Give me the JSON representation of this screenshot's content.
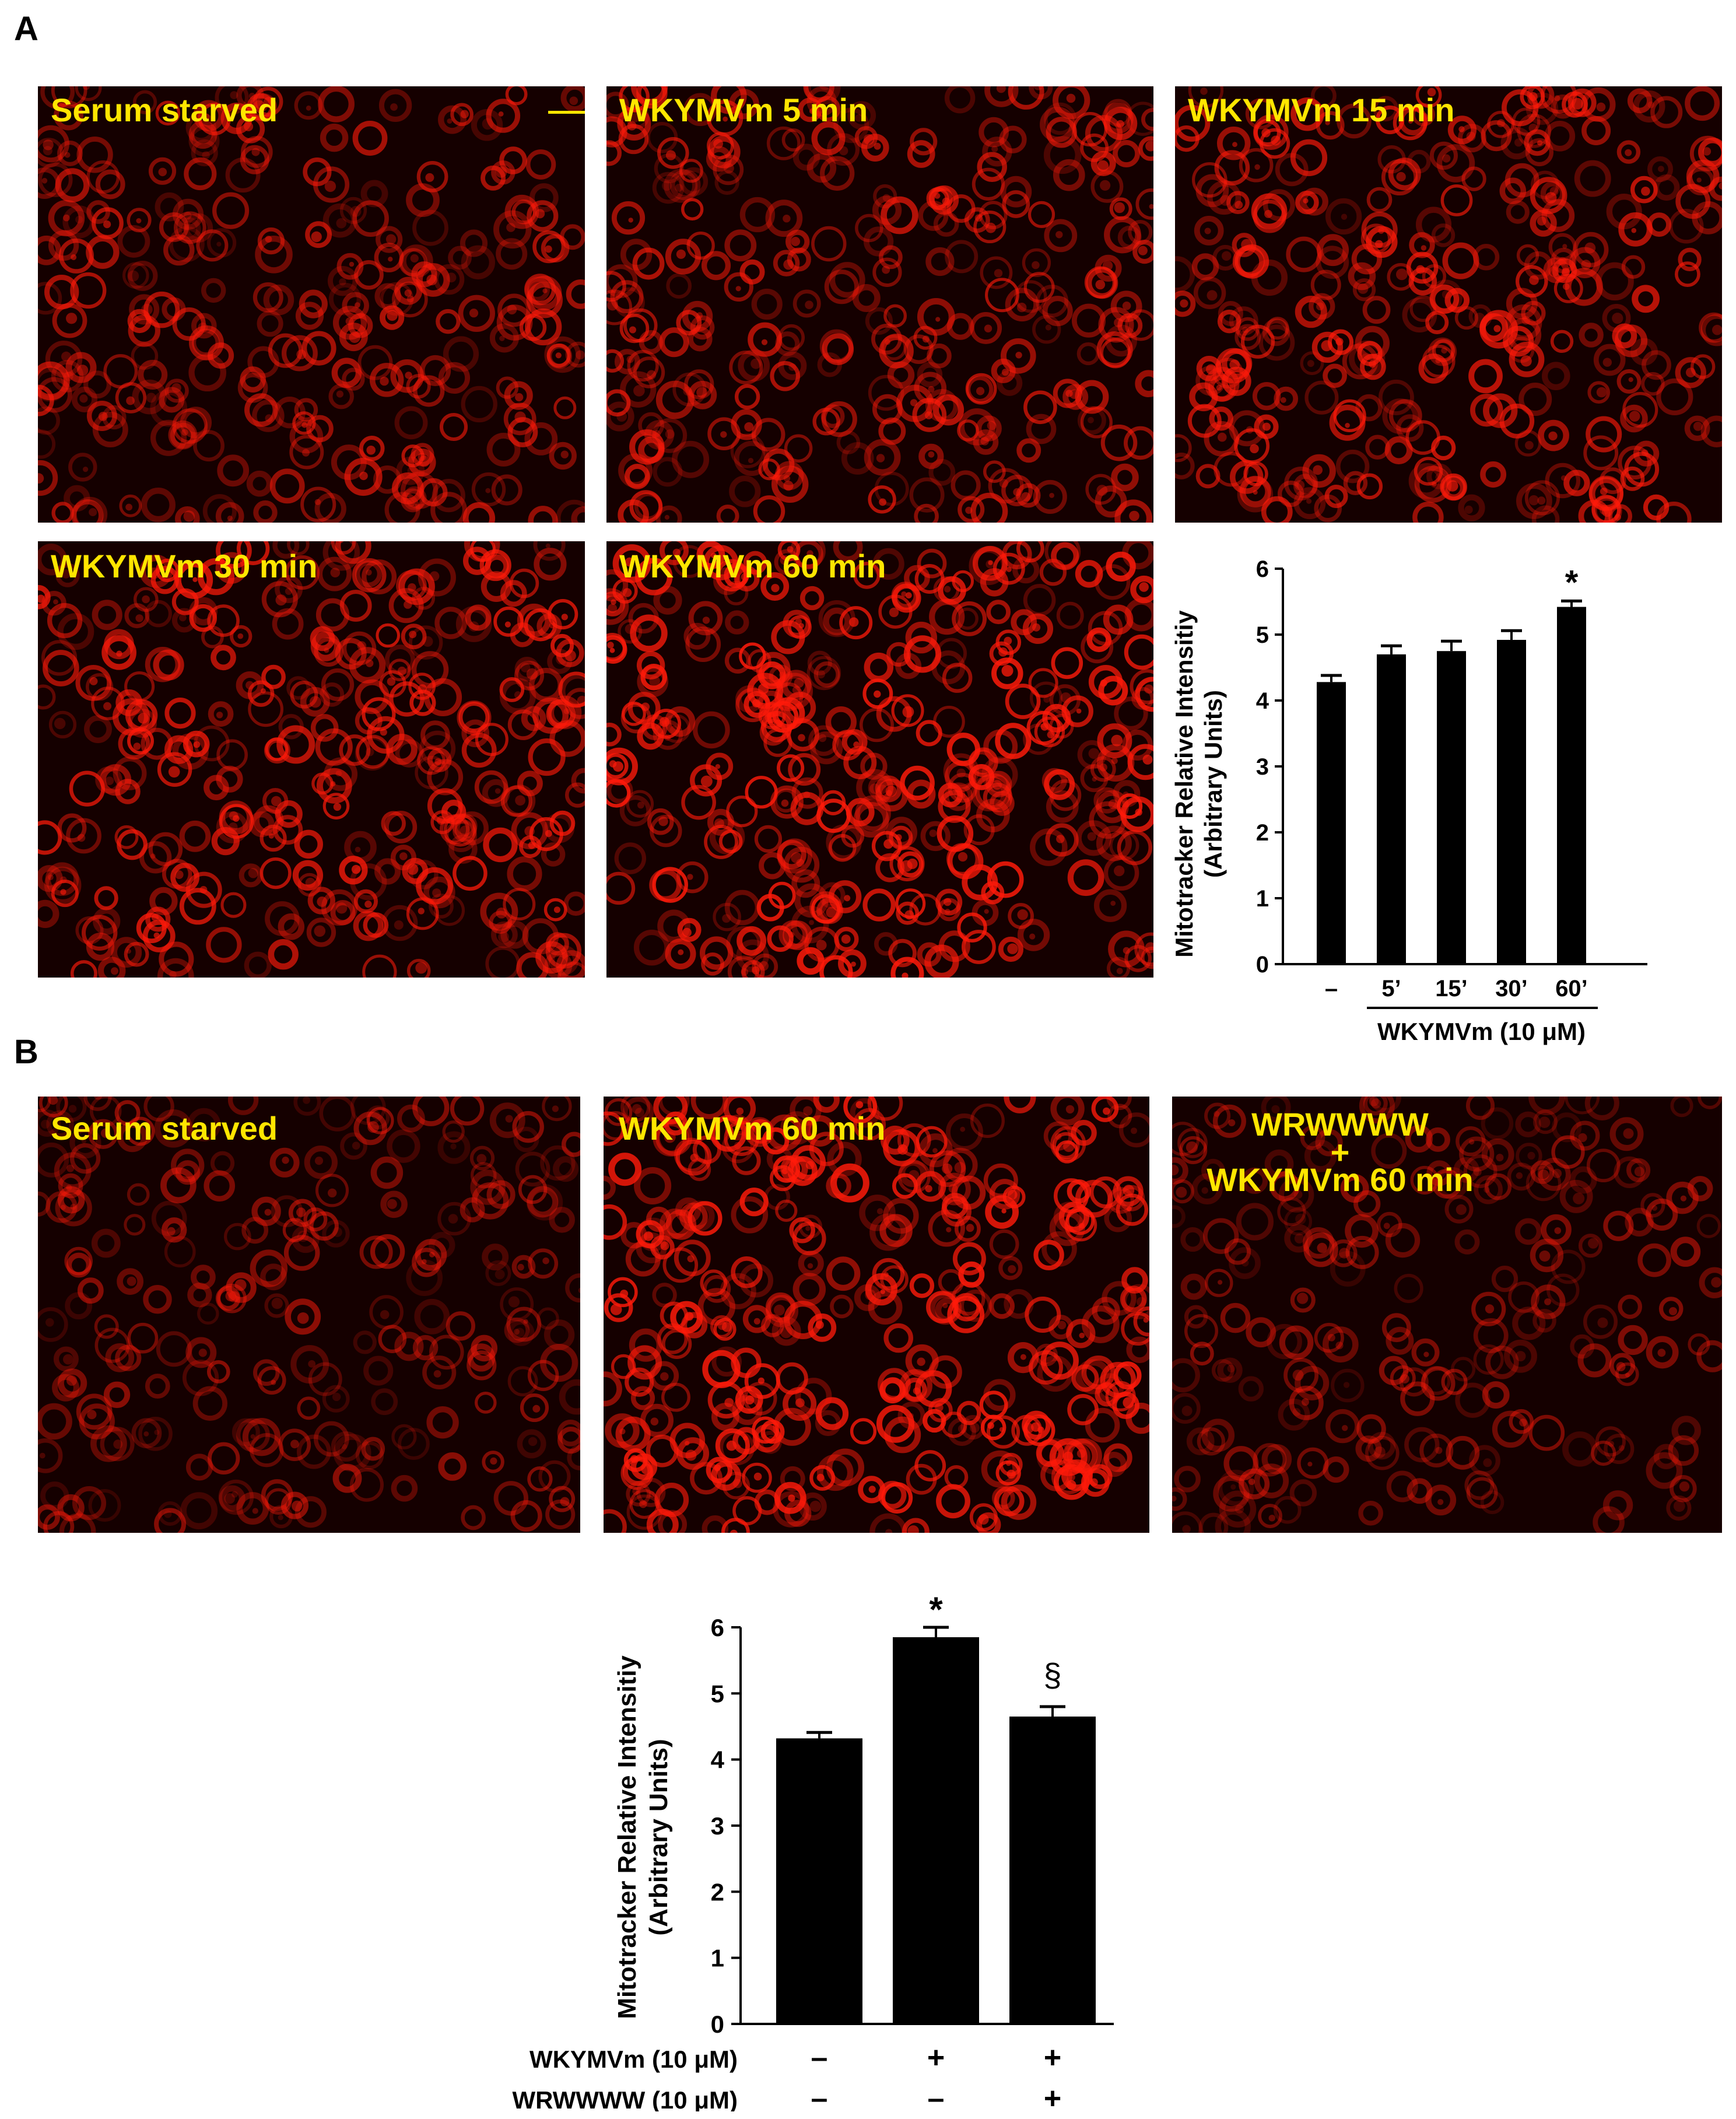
{
  "panels": {
    "a": {
      "letter": "A"
    },
    "b": {
      "letter": "B"
    }
  },
  "micrographs": {
    "a1": {
      "label": "Serum starved",
      "intensity": 0.75,
      "seed": 11
    },
    "a2": {
      "label": "WKYMVm 5 min",
      "intensity": 0.8,
      "seed": 23
    },
    "a3": {
      "label": "WKYMVm 15 min",
      "intensity": 0.85,
      "seed": 37
    },
    "a4": {
      "label": "WKYMVm 30 min",
      "intensity": 0.9,
      "seed": 41
    },
    "a5": {
      "label": "WKYMVm 60 min",
      "intensity": 1.0,
      "seed": 53
    },
    "b1": {
      "label": "Serum starved",
      "intensity": 0.6,
      "seed": 67
    },
    "b2": {
      "label": "WKYMVm 60 min",
      "intensity": 1.0,
      "seed": 71
    },
    "b3": {
      "label_line1": "WRWWWW",
      "label_line2": "+",
      "label_line3": "WKYMVm 60 min",
      "intensity": 0.55,
      "seed": 89
    }
  },
  "colors": {
    "stain": "#FF1A0A",
    "label": "#FFE600",
    "bar": "#000000"
  },
  "chart_data": [
    {
      "type": "bar",
      "ylabel_line1": "Mitotracker Relative Intensitiy",
      "ylabel_line2": "(Arbitrary Units)",
      "ylim": [
        0,
        6
      ],
      "yticks": [
        "0",
        "1",
        "2",
        "3",
        "4",
        "5",
        "6"
      ],
      "categories": [
        "–",
        "5’",
        "15’",
        "30’",
        "60’"
      ],
      "values": [
        4.28,
        4.7,
        4.75,
        4.92,
        5.42
      ],
      "errors": [
        0.1,
        0.13,
        0.15,
        0.14,
        0.09
      ],
      "annotations": [
        "",
        "",
        "",
        "",
        "*"
      ],
      "group_label": "WKYMVm (10 μM)"
    },
    {
      "type": "bar",
      "ylabel_line1": "Mitotracker Relative Intensitiy",
      "ylabel_line2": "(Arbitrary Units)",
      "ylim": [
        0,
        6
      ],
      "yticks": [
        "0",
        "1",
        "2",
        "3",
        "4",
        "5",
        "6"
      ],
      "values": [
        4.32,
        5.85,
        4.65
      ],
      "errors": [
        0.09,
        0.15,
        0.15
      ],
      "annotations": [
        "",
        "*",
        "§"
      ],
      "row_labels": [
        "WKYMVm (10 μM)",
        "WRWWWW (10 μM)"
      ],
      "row_signs": [
        [
          "–",
          "+",
          "+"
        ],
        [
          "–",
          "–",
          "+"
        ]
      ]
    }
  ]
}
